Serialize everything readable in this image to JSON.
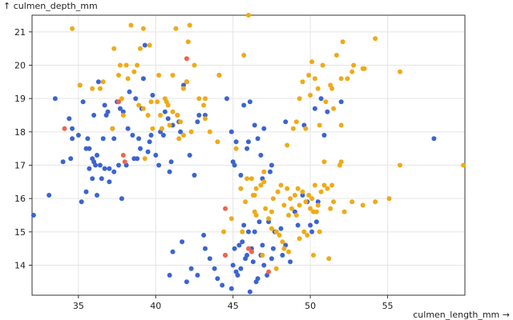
{
  "chart_data": {
    "type": "scatter",
    "xlabel": "culmen_length_mm →",
    "ylabel": "↑ culmen_depth_mm",
    "xlim": [
      32,
      60
    ],
    "ylim": [
      13.1,
      21.5
    ],
    "x_ticks": [
      35,
      40,
      45,
      50,
      55
    ],
    "y_ticks": [
      14,
      15,
      16,
      17,
      18,
      19,
      20,
      21
    ],
    "grid": true,
    "legend": "none",
    "series_colors": [
      "#3b64d0",
      "#efaa16",
      "#f0644e"
    ],
    "series": [
      {
        "color": "#3b64d0",
        "points": [
          [
            32.1,
            15.5
          ],
          [
            33.1,
            16.1
          ],
          [
            33.5,
            19.0
          ],
          [
            34.0,
            17.1
          ],
          [
            34.4,
            18.4
          ],
          [
            34.5,
            17.2
          ],
          [
            34.6,
            17.8
          ],
          [
            34.6,
            18.1
          ],
          [
            35.0,
            17.9
          ],
          [
            35.1,
            19.4
          ],
          [
            35.2,
            15.9
          ],
          [
            35.3,
            18.9
          ],
          [
            35.5,
            16.2
          ],
          [
            35.5,
            17.5
          ],
          [
            35.6,
            17.8
          ],
          [
            35.7,
            16.9
          ],
          [
            35.7,
            17.5
          ],
          [
            35.9,
            16.6
          ],
          [
            35.9,
            17.2
          ],
          [
            36.0,
            18.5
          ],
          [
            36.0,
            17.1
          ],
          [
            36.1,
            17.0
          ],
          [
            36.2,
            16.1
          ],
          [
            36.2,
            17.3
          ],
          [
            36.3,
            19.5
          ],
          [
            36.4,
            17.0
          ],
          [
            36.5,
            16.6
          ],
          [
            36.6,
            17.8
          ],
          [
            36.7,
            18.8
          ],
          [
            36.7,
            16.9
          ],
          [
            36.8,
            18.5
          ],
          [
            36.9,
            18.6
          ],
          [
            37.0,
            16.9
          ],
          [
            37.0,
            16.5
          ],
          [
            37.2,
            18.1
          ],
          [
            37.3,
            17.8
          ],
          [
            37.3,
            16.8
          ],
          [
            37.5,
            18.9
          ],
          [
            37.6,
            17.0
          ],
          [
            37.7,
            18.7
          ],
          [
            37.8,
            16.0
          ],
          [
            37.9,
            18.6
          ],
          [
            38.1,
            17.0
          ],
          [
            38.2,
            18.1
          ],
          [
            38.3,
            19.2
          ],
          [
            38.5,
            17.9
          ],
          [
            38.6,
            17.2
          ],
          [
            38.7,
            19.0
          ],
          [
            38.8,
            17.2
          ],
          [
            38.9,
            17.8
          ],
          [
            39.0,
            17.5
          ],
          [
            39.1,
            18.7
          ],
          [
            39.2,
            19.6
          ],
          [
            39.3,
            20.6
          ],
          [
            39.5,
            17.4
          ],
          [
            39.6,
            17.7
          ],
          [
            39.7,
            17.9
          ],
          [
            39.8,
            19.1
          ],
          [
            40.0,
            17.3
          ],
          [
            40.2,
            17.0
          ],
          [
            40.3,
            18.0
          ],
          [
            40.5,
            17.9
          ],
          [
            40.6,
            18.6
          ],
          [
            40.8,
            18.4
          ],
          [
            40.9,
            16.8
          ],
          [
            41.0,
            17.1
          ],
          [
            41.1,
            18.2
          ],
          [
            41.4,
            18.5
          ],
          [
            41.5,
            18.3
          ],
          [
            41.6,
            18.0
          ],
          [
            41.8,
            19.4
          ],
          [
            42.0,
            19.5
          ],
          [
            42.2,
            17.3
          ],
          [
            42.5,
            16.7
          ],
          [
            42.7,
            18.3
          ],
          [
            42.8,
            18.5
          ],
          [
            43.2,
            18.5
          ],
          [
            44.1,
            19.7
          ],
          [
            44.5,
            14.3
          ],
          [
            45.1,
            14.5
          ],
          [
            45.2,
            13.8
          ],
          [
            45.4,
            14.6
          ],
          [
            45.5,
            13.9
          ],
          [
            45.8,
            14.2
          ],
          [
            46.1,
            13.2
          ],
          [
            46.2,
            14.5
          ],
          [
            46.4,
            15.0
          ],
          [
            46.5,
            13.5
          ],
          [
            46.8,
            14.3
          ],
          [
            46.9,
            14.6
          ],
          [
            47.2,
            13.7
          ],
          [
            47.5,
            14.2
          ],
          [
            47.6,
            14.5
          ],
          [
            47.7,
            15.0
          ],
          [
            48.1,
            15.1
          ],
          [
            48.2,
            14.3
          ],
          [
            48.4,
            14.6
          ],
          [
            48.7,
            14.1
          ],
          [
            49.0,
            15.6
          ],
          [
            49.2,
            15.2
          ],
          [
            49.5,
            16.1
          ],
          [
            49.8,
            15.9
          ],
          [
            50.0,
            15.2
          ],
          [
            50.1,
            15.0
          ],
          [
            50.4,
            15.3
          ],
          [
            50.5,
            15.9
          ],
          [
            41.1,
            14.4
          ],
          [
            40.9,
            13.7
          ],
          [
            42.0,
            13.5
          ],
          [
            42.7,
            13.7
          ],
          [
            43.2,
            14.5
          ],
          [
            43.5,
            14.2
          ],
          [
            43.8,
            13.9
          ],
          [
            44.0,
            13.6
          ],
          [
            44.9,
            13.3
          ],
          [
            45.0,
            14.0
          ],
          [
            45.3,
            13.7
          ],
          [
            45.6,
            14.7
          ],
          [
            45.9,
            14.3
          ],
          [
            46.0,
            15.0
          ],
          [
            46.3,
            14.1
          ],
          [
            46.6,
            13.6
          ],
          [
            46.7,
            15.3
          ],
          [
            47.0,
            14.0
          ],
          [
            47.3,
            15.3
          ],
          [
            47.8,
            15.0
          ],
          [
            41.7,
            14.7
          ],
          [
            42.3,
            13.9
          ],
          [
            43.1,
            14.9
          ],
          [
            44.3,
            13.4
          ],
          [
            45.7,
            15.2
          ],
          [
            45.5,
            16.7
          ],
          [
            45.2,
            17.7
          ],
          [
            45.9,
            17.5
          ],
          [
            46.4,
            18.2
          ],
          [
            46.8,
            17.3
          ],
          [
            45.1,
            17.0
          ],
          [
            44.9,
            18.0
          ],
          [
            47.5,
            17.0
          ],
          [
            46.1,
            18.9
          ],
          [
            45.7,
            18.8
          ],
          [
            47.0,
            18.1
          ],
          [
            46.6,
            17.8
          ],
          [
            46.9,
            16.6
          ],
          [
            48.4,
            18.3
          ],
          [
            49.6,
            18.2
          ],
          [
            50.3,
            18.7
          ],
          [
            50.7,
            19.0
          ],
          [
            50.9,
            17.9
          ],
          [
            51.1,
            18.6
          ],
          [
            52.0,
            18.9
          ],
          [
            58.0,
            17.8
          ],
          [
            45.0,
            17.1
          ],
          [
            46.0,
            17.7
          ],
          [
            44.6,
            19.0
          ],
          [
            47.4,
            16.8
          ]
        ]
      },
      {
        "color": "#efaa16",
        "points": [
          [
            34.6,
            21.1
          ],
          [
            35.1,
            19.4
          ],
          [
            35.9,
            19.3
          ],
          [
            36.4,
            19.3
          ],
          [
            36.6,
            19.5
          ],
          [
            37.2,
            18.1
          ],
          [
            37.3,
            20.5
          ],
          [
            37.6,
            19.7
          ],
          [
            37.7,
            20.0
          ],
          [
            37.8,
            19.0
          ],
          [
            37.9,
            18.5
          ],
          [
            38.1,
            20.0
          ],
          [
            38.2,
            19.6
          ],
          [
            38.4,
            21.2
          ],
          [
            38.6,
            19.8
          ],
          [
            38.8,
            20.0
          ],
          [
            38.9,
            18.8
          ],
          [
            39.0,
            20.5
          ],
          [
            39.2,
            21.1
          ],
          [
            39.2,
            18.7
          ],
          [
            39.3,
            17.2
          ],
          [
            39.5,
            18.5
          ],
          [
            39.6,
            20.6
          ],
          [
            39.7,
            18.9
          ],
          [
            39.8,
            18.1
          ],
          [
            40.1,
            18.9
          ],
          [
            40.2,
            19.7
          ],
          [
            40.3,
            18.5
          ],
          [
            40.4,
            18.1
          ],
          [
            40.6,
            19.0
          ],
          [
            40.7,
            18.9
          ],
          [
            40.8,
            18.8
          ],
          [
            40.9,
            18.2
          ],
          [
            41.1,
            19.7
          ],
          [
            41.1,
            18.6
          ],
          [
            41.3,
            21.1
          ],
          [
            41.4,
            18.5
          ],
          [
            41.5,
            17.8
          ],
          [
            41.6,
            18.3
          ],
          [
            41.8,
            17.9
          ],
          [
            41.8,
            19.3
          ],
          [
            42.0,
            19.5
          ],
          [
            42.1,
            20.7
          ],
          [
            42.2,
            21.2
          ],
          [
            42.3,
            18.0
          ],
          [
            42.5,
            20.0
          ],
          [
            42.8,
            19.0
          ],
          [
            43.1,
            18.8
          ],
          [
            43.2,
            19.0
          ],
          [
            43.2,
            18.4
          ],
          [
            43.5,
            18.0
          ],
          [
            44.0,
            17.7
          ],
          [
            44.1,
            19.7
          ],
          [
            45.2,
            17.5
          ],
          [
            46.0,
            21.5
          ],
          [
            45.7,
            20.3
          ],
          [
            45.5,
            16.3
          ],
          [
            45.9,
            16.6
          ],
          [
            46.2,
            16.6
          ],
          [
            46.4,
            16.1
          ],
          [
            46.5,
            15.5
          ],
          [
            46.8,
            16.4
          ],
          [
            47.0,
            16.5
          ],
          [
            47.3,
            15.4
          ],
          [
            47.5,
            15.6
          ],
          [
            47.6,
            16.0
          ],
          [
            47.8,
            15.0
          ],
          [
            47.9,
            16.2
          ],
          [
            48.1,
            16.4
          ],
          [
            48.3,
            15.8
          ],
          [
            48.5,
            16.3
          ],
          [
            48.6,
            15.5
          ],
          [
            48.7,
            16.0
          ],
          [
            48.8,
            15.7
          ],
          [
            49.0,
            16.1
          ],
          [
            49.1,
            15.5
          ],
          [
            49.2,
            16.3
          ],
          [
            49.3,
            15.8
          ],
          [
            49.5,
            16.2
          ],
          [
            49.6,
            15.0
          ],
          [
            49.7,
            15.9
          ],
          [
            49.9,
            16.1
          ],
          [
            50.0,
            15.7
          ],
          [
            50.1,
            16.0
          ],
          [
            50.2,
            15.6
          ],
          [
            50.3,
            16.4
          ],
          [
            50.5,
            15.8
          ],
          [
            50.6,
            15.0
          ],
          [
            50.7,
            16.2
          ],
          [
            50.9,
            16.4
          ],
          [
            51.1,
            16.3
          ],
          [
            51.3,
            15.7
          ],
          [
            51.5,
            15.9
          ],
          [
            51.9,
            17.0
          ],
          [
            52.0,
            17.1
          ],
          [
            52.2,
            15.6
          ],
          [
            52.7,
            15.9
          ],
          [
            53.4,
            15.8
          ],
          [
            54.2,
            15.9
          ],
          [
            55.1,
            16.0
          ],
          [
            55.8,
            17.0
          ],
          [
            59.9,
            17.0
          ],
          [
            48.5,
            17.6
          ],
          [
            48.9,
            18.1
          ],
          [
            49.1,
            18.3
          ],
          [
            49.3,
            19.0
          ],
          [
            49.7,
            18.1
          ],
          [
            49.9,
            19.7
          ],
          [
            50.0,
            19.1
          ],
          [
            50.1,
            20.1
          ],
          [
            50.3,
            19.6
          ],
          [
            50.5,
            19.3
          ],
          [
            50.6,
            18.2
          ],
          [
            50.8,
            20.0
          ],
          [
            51.0,
            18.9
          ],
          [
            51.3,
            19.4
          ],
          [
            51.4,
            19.3
          ],
          [
            51.7,
            20.3
          ],
          [
            52.0,
            19.6
          ],
          [
            52.1,
            20.7
          ],
          [
            52.7,
            19.8
          ],
          [
            52.8,
            20.0
          ],
          [
            53.5,
            19.9
          ],
          [
            54.2,
            20.8
          ],
          [
            55.8,
            19.8
          ],
          [
            49.5,
            19.5
          ],
          [
            50.9,
            17.1
          ],
          [
            51.5,
            18.7
          ],
          [
            52.0,
            18.2
          ],
          [
            52.4,
            19.6
          ],
          [
            53.4,
            19.9
          ],
          [
            46.4,
            15.6
          ],
          [
            46.5,
            16.3
          ],
          [
            47.1,
            15.7
          ],
          [
            47.5,
            15.1
          ],
          [
            48.0,
            14.9
          ],
          [
            48.2,
            14.7
          ],
          [
            48.6,
            14.4
          ],
          [
            49.8,
            14.9
          ],
          [
            50.2,
            14.3
          ],
          [
            51.2,
            14.2
          ],
          [
            44.9,
            15.4
          ],
          [
            45.6,
            15.0
          ],
          [
            46.9,
            14.3
          ],
          [
            47.8,
            13.9
          ],
          [
            48.3,
            14.5
          ],
          [
            49.3,
            14.8
          ],
          [
            50.4,
            15.6
          ],
          [
            51.4,
            16.4
          ],
          [
            47.0,
            16.8
          ],
          [
            46.3,
            16.1
          ],
          [
            45.8,
            15.9
          ],
          [
            44.4,
            15.0
          ]
        ]
      },
      {
        "color": "#f0644e",
        "points": [
          [
            34.1,
            18.1
          ],
          [
            37.6,
            18.9
          ],
          [
            37.9,
            17.3
          ],
          [
            38.0,
            17.1
          ],
          [
            42.0,
            20.2
          ],
          [
            44.5,
            15.7
          ],
          [
            44.5,
            14.3
          ],
          [
            46.0,
            14.5
          ],
          [
            46.2,
            14.4
          ],
          [
            47.3,
            13.8
          ]
        ]
      }
    ]
  }
}
